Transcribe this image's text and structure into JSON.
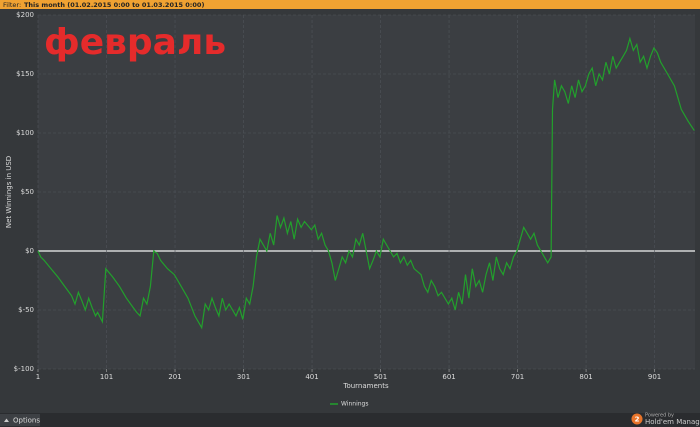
{
  "filter": {
    "label": "Filter:",
    "text": "This month (01.02.2015 0:00 to 01.03.2015 0:00)"
  },
  "footer": {
    "options": "Options",
    "powered": "Powered by",
    "badge": "2",
    "brand": "Hold'em Manager"
  },
  "chart_data": {
    "type": "line",
    "annotation": "февраль",
    "x_label": "Tournaments",
    "y_label": "Net Winnings in USD",
    "xlim": [
      1,
      960
    ],
    "xticks": [
      1,
      101,
      201,
      301,
      401,
      501,
      601,
      701,
      801,
      901
    ],
    "ylim": [
      -100,
      200
    ],
    "yticks": [
      {
        "value": -100,
        "label": "$-100"
      },
      {
        "value": -50,
        "label": "$-50"
      },
      {
        "value": 0,
        "label": "$0"
      },
      {
        "value": 50,
        "label": "$50"
      },
      {
        "value": 100,
        "label": "$100"
      },
      {
        "value": 150,
        "label": "$150"
      },
      {
        "value": 200,
        "label": "$200"
      }
    ],
    "grid": true,
    "legend": "bottom",
    "x": [
      1,
      5,
      10,
      20,
      30,
      40,
      50,
      55,
      60,
      65,
      70,
      75,
      80,
      85,
      88,
      95,
      100,
      110,
      120,
      130,
      140,
      145,
      150,
      155,
      160,
      165,
      170,
      175,
      180,
      190,
      200,
      210,
      220,
      230,
      240,
      245,
      250,
      255,
      260,
      265,
      270,
      275,
      280,
      290,
      295,
      300,
      305,
      310,
      315,
      320,
      325,
      330,
      335,
      340,
      345,
      350,
      355,
      360,
      365,
      370,
      375,
      380,
      385,
      390,
      400,
      405,
      410,
      415,
      420,
      425,
      430,
      435,
      440,
      445,
      450,
      455,
      460,
      465,
      470,
      475,
      480,
      485,
      490,
      495,
      500,
      505,
      510,
      515,
      520,
      525,
      530,
      535,
      540,
      545,
      550,
      560,
      565,
      570,
      575,
      580,
      585,
      590,
      600,
      605,
      610,
      615,
      620,
      625,
      630,
      635,
      640,
      645,
      650,
      655,
      660,
      665,
      670,
      675,
      680,
      685,
      690,
      695,
      700,
      705,
      710,
      715,
      720,
      725,
      730,
      735,
      740,
      745,
      750,
      752,
      755,
      760,
      765,
      770,
      775,
      780,
      785,
      790,
      795,
      800,
      805,
      810,
      815,
      820,
      825,
      830,
      835,
      840,
      845,
      850,
      855,
      860,
      865,
      870,
      875,
      880,
      885,
      890,
      895,
      900,
      905,
      910,
      920,
      930,
      940,
      950,
      959
    ],
    "series": [
      {
        "name": "Winnings",
        "color": "#22a02c",
        "values": [
          0,
          -5,
          -8,
          -15,
          -22,
          -30,
          -38,
          -45,
          -35,
          -42,
          -50,
          -40,
          -48,
          -55,
          -52,
          -60,
          -15,
          -22,
          -30,
          -40,
          -48,
          -52,
          -55,
          -40,
          -45,
          -30,
          0,
          -2,
          -8,
          -15,
          -20,
          -30,
          -40,
          -55,
          -65,
          -45,
          -50,
          -40,
          -48,
          -55,
          -40,
          -50,
          -45,
          -55,
          -48,
          -58,
          -40,
          -45,
          -30,
          -5,
          10,
          5,
          0,
          15,
          5,
          30,
          20,
          28,
          15,
          25,
          10,
          27,
          20,
          25,
          18,
          22,
          10,
          15,
          5,
          0,
          -10,
          -25,
          -15,
          -5,
          -10,
          0,
          -5,
          10,
          5,
          15,
          0,
          -15,
          -8,
          0,
          -5,
          10,
          5,
          0,
          -5,
          -2,
          -10,
          -5,
          -12,
          -8,
          -15,
          -20,
          -30,
          -35,
          -25,
          -30,
          -38,
          -35,
          -45,
          -40,
          -50,
          -35,
          -45,
          -20,
          -40,
          -15,
          -30,
          -25,
          -35,
          -20,
          -10,
          -25,
          -5,
          -15,
          -20,
          -10,
          -15,
          -5,
          0,
          10,
          20,
          15,
          10,
          15,
          5,
          0,
          -5,
          -10,
          -5,
          120,
          145,
          130,
          140,
          135,
          125,
          140,
          130,
          145,
          135,
          140,
          150,
          155,
          140,
          150,
          145,
          160,
          150,
          165,
          155,
          160,
          165,
          170,
          180,
          170,
          175,
          160,
          165,
          155,
          165,
          172,
          168,
          160,
          150,
          140,
          120,
          110,
          102
        ]
      }
    ]
  }
}
